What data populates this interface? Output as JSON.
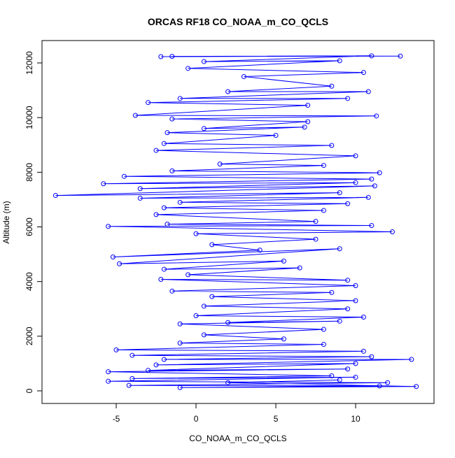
{
  "chart_data": {
    "type": "line",
    "title": "ORCAS RF18 CO_NOAA_m_CO_QCLS",
    "x_label": "CO_NOAA_m_CO_QCLS",
    "y_label": "Altitude (m)",
    "color": "#0000ff",
    "xlim": [
      -9.65,
      14.91
    ],
    "ylim": [
      -461,
      12819
    ],
    "xticks": [
      -5,
      0,
      5,
      10
    ],
    "yticks": [
      0,
      2000,
      4000,
      6000,
      8000,
      10000,
      12000
    ],
    "x": [
      -2.2,
      12.8,
      -1.5,
      11,
      0.5,
      9,
      -0.5,
      10.5,
      3,
      8.5,
      2,
      10.8,
      -1,
      9.5,
      -3,
      7,
      -3.8,
      11.3,
      -1.5,
      7,
      0.5,
      6.8,
      -1.8,
      5,
      -2,
      8.5,
      -2.5,
      10,
      1.5,
      8,
      -1.5,
      11.5,
      -4.5,
      11,
      -5.8,
      10,
      -3.5,
      11.2,
      -8.8,
      9,
      -3.5,
      10.8,
      -1,
      9.5,
      -2,
      8,
      -2.5,
      7.5,
      -1.8,
      11,
      -5.5,
      12.3,
      0,
      7.5,
      1,
      4,
      -5.2,
      9,
      -4.8,
      5.5,
      -2,
      6.5,
      -0.5,
      9.5,
      -2.2,
      10,
      -1.5,
      8.5,
      1,
      10,
      0.5,
      9.5,
      0,
      10.5,
      2,
      9,
      -1,
      8,
      0.5,
      5.5,
      -1,
      8,
      -5,
      10.5,
      -4,
      11,
      -2,
      13.5,
      -2.5,
      10,
      -3,
      9.5,
      -5.5,
      8.5,
      -4,
      10,
      -5.5,
      12,
      -4.2,
      11.5,
      -1,
      13.8,
      2,
      9
    ],
    "values": [
      12230,
      12250,
      12240,
      12260,
      12050,
      12080,
      11800,
      11650,
      11500,
      11150,
      10950,
      10950,
      10700,
      10700,
      10550,
      10450,
      10080,
      10060,
      9950,
      9850,
      9600,
      9650,
      9450,
      9350,
      9050,
      8980,
      8800,
      8600,
      8300,
      8250,
      8050,
      7980,
      7850,
      7750,
      7580,
      7620,
      7400,
      7500,
      7150,
      7250,
      7050,
      7080,
      6900,
      6850,
      6700,
      6600,
      6450,
      6200,
      6100,
      6050,
      6020,
      5820,
      5750,
      5550,
      5350,
      5150,
      4900,
      5200,
      4650,
      4750,
      4450,
      4500,
      4250,
      4050,
      4080,
      3850,
      3650,
      3600,
      3450,
      3300,
      3100,
      3000,
      2750,
      2700,
      2500,
      2550,
      2450,
      2250,
      2050,
      1900,
      1750,
      1700,
      1500,
      1450,
      1300,
      1250,
      1150,
      1150,
      950,
      1000,
      750,
      800,
      700,
      550,
      450,
      500,
      350,
      300,
      200,
      180,
      120,
      160,
      300,
      400
    ]
  }
}
